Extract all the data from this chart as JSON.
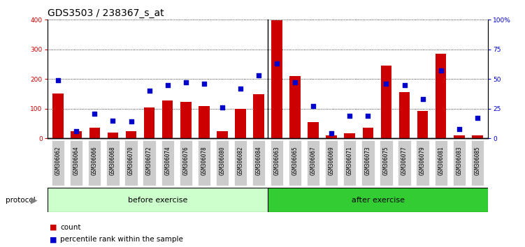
{
  "title": "GDS3503 / 238367_s_at",
  "samples": [
    "GSM306062",
    "GSM306064",
    "GSM306066",
    "GSM306068",
    "GSM306070",
    "GSM306072",
    "GSM306074",
    "GSM306076",
    "GSM306078",
    "GSM306080",
    "GSM306082",
    "GSM306084",
    "GSM306063",
    "GSM306065",
    "GSM306067",
    "GSM306069",
    "GSM306071",
    "GSM306073",
    "GSM306075",
    "GSM306077",
    "GSM306079",
    "GSM306081",
    "GSM306083",
    "GSM306085"
  ],
  "counts": [
    152,
    25,
    35,
    20,
    25,
    105,
    128,
    123,
    108,
    25,
    100,
    150,
    398,
    210,
    55,
    10,
    18,
    35,
    245,
    155,
    93,
    285,
    10,
    10
  ],
  "percentiles": [
    49,
    6,
    21,
    15,
    14,
    40,
    45,
    47,
    46,
    26,
    42,
    53,
    63,
    47,
    27,
    4,
    19,
    19,
    46,
    45,
    33,
    57,
    8,
    17
  ],
  "before_exercise_count": 12,
  "after_exercise_count": 12,
  "bar_color": "#cc0000",
  "dot_color": "#0000cc",
  "before_bg": "#ccffcc",
  "after_bg": "#33cc33",
  "protocol_label": "protocol",
  "before_label": "before exercise",
  "after_label": "after exercise",
  "legend_count": "count",
  "legend_pct": "percentile rank within the sample",
  "left_axis_color": "#cc0000",
  "right_axis_color": "#0000cc",
  "ylim_left": [
    0,
    400
  ],
  "ylim_right": [
    0,
    100
  ],
  "yticks_left": [
    0,
    100,
    200,
    300,
    400
  ],
  "yticks_right": [
    0,
    25,
    50,
    75,
    100
  ],
  "grid_color": "#000000",
  "background_color": "#ffffff",
  "plot_bg": "#ffffff",
  "tick_label_bg": "#cccccc",
  "title_fontsize": 10,
  "tick_fontsize": 6.5,
  "label_fontsize": 8,
  "bar_width": 0.6
}
